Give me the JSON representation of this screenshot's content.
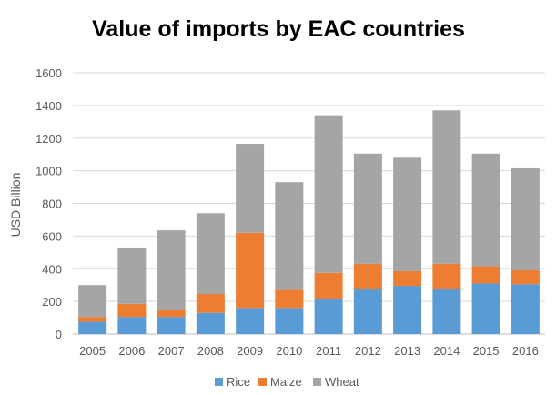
{
  "chart_data": {
    "type": "bar",
    "stacked": true,
    "title": "Value of imports by EAC countries",
    "xlabel": "",
    "ylabel": "USD Billion",
    "ylim": [
      0,
      1600
    ],
    "yticks": [
      0,
      200,
      400,
      600,
      800,
      1000,
      1200,
      1400,
      1600
    ],
    "grid": true,
    "legend_position": "bottom",
    "categories": [
      "2005",
      "2006",
      "2007",
      "2008",
      "2009",
      "2010",
      "2011",
      "2012",
      "2013",
      "2014",
      "2015",
      "2016"
    ],
    "series": [
      {
        "name": "Rice",
        "color": "#5b9bd5",
        "values": [
          75,
          105,
          105,
          130,
          160,
          160,
          215,
          275,
          295,
          275,
          310,
          305
        ]
      },
      {
        "name": "Maize",
        "color": "#ed7d31",
        "values": [
          30,
          80,
          40,
          115,
          460,
          110,
          160,
          155,
          90,
          155,
          105,
          85
        ]
      },
      {
        "name": "Wheat",
        "color": "#a5a5a5",
        "values": [
          195,
          345,
          490,
          495,
          545,
          660,
          965,
          675,
          695,
          940,
          690,
          625
        ]
      }
    ]
  }
}
